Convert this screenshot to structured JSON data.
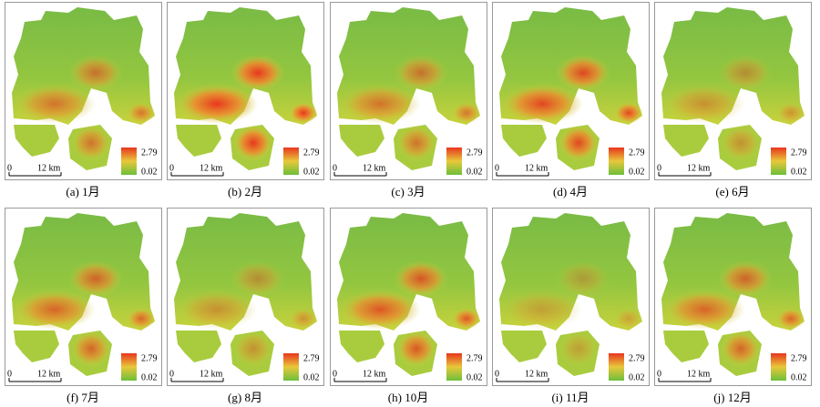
{
  "panels": [
    {
      "caption": "(a) 1月",
      "legend_max": 2.79,
      "legend_min": 0.02,
      "scale_start": "0",
      "scale_label": "12 km"
    },
    {
      "caption": "(b) 2月",
      "legend_max": 2.79,
      "legend_min": 0.02,
      "scale_start": "0",
      "scale_label": "12 km"
    },
    {
      "caption": "(c) 3月",
      "legend_max": 2.79,
      "legend_min": 0.02,
      "scale_start": "0",
      "scale_label": "12 km"
    },
    {
      "caption": "(d) 4月",
      "legend_max": 2.79,
      "legend_min": 0.02,
      "scale_start": "0",
      "scale_label": "12 km"
    },
    {
      "caption": "(e) 6月",
      "legend_max": 2.79,
      "legend_min": 0.02,
      "scale_start": "0",
      "scale_label": "12 km"
    },
    {
      "caption": "(f) 7月",
      "legend_max": 2.79,
      "legend_min": 0.02,
      "scale_start": "0",
      "scale_label": "12 km"
    },
    {
      "caption": "(g) 8月",
      "legend_max": 2.79,
      "legend_min": 0.02,
      "scale_start": "0",
      "scale_label": "12 km"
    },
    {
      "caption": "(h) 10月",
      "legend_max": 2.79,
      "legend_min": 0.02,
      "scale_start": "0",
      "scale_label": "12 km"
    },
    {
      "caption": "(i) 11月",
      "legend_max": 2.79,
      "legend_min": 0.02,
      "scale_start": "0",
      "scale_label": "12 km"
    },
    {
      "caption": "(j) 12月",
      "legend_max": 2.79,
      "legend_min": 0.02,
      "scale_start": "0",
      "scale_label": "12 km"
    }
  ]
}
